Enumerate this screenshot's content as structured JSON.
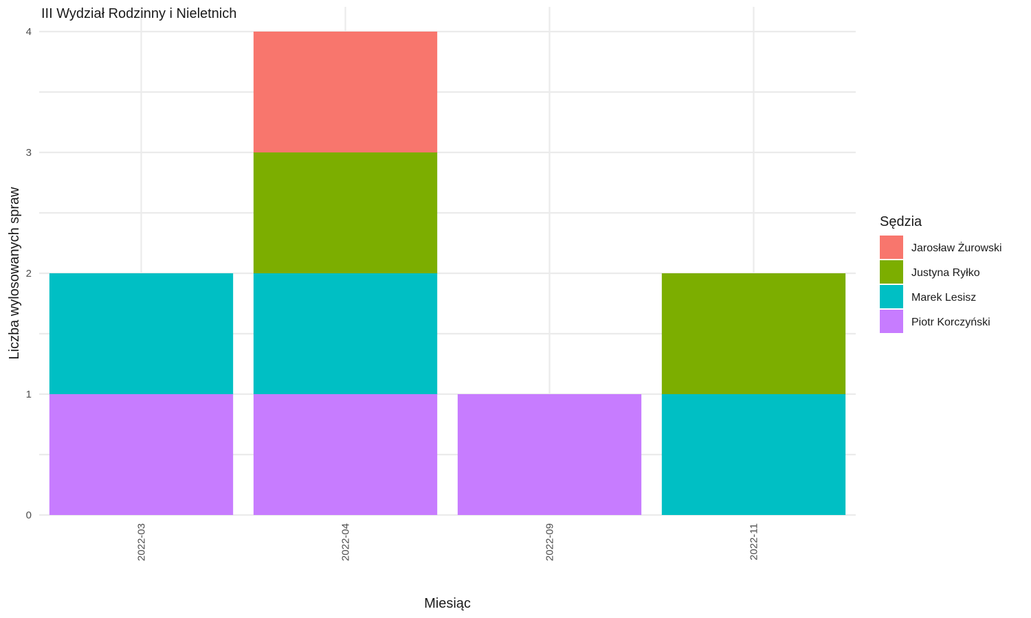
{
  "chart_data": {
    "type": "bar",
    "stacked": true,
    "title": "III Wydział Rodzinny i Nieletnich",
    "xlabel": "Miesiąc",
    "ylabel": "Liczba wylosowanych spraw",
    "categories": [
      "2022-03",
      "2022-04",
      "2022-09",
      "2022-11"
    ],
    "ylim": [
      0,
      4
    ],
    "yticks": [
      "0",
      "1",
      "2",
      "3",
      "4"
    ],
    "grid": true,
    "legend": {
      "title": "Sędzia",
      "position": "right"
    },
    "series": [
      {
        "name": "Jarosław Żurowski",
        "color": "#F8766D",
        "values": [
          0,
          1,
          0,
          0
        ]
      },
      {
        "name": "Justyna Ryłko",
        "color": "#7CAE00",
        "values": [
          0,
          1,
          0,
          1
        ]
      },
      {
        "name": "Marek Lesisz",
        "color": "#00BFC4",
        "values": [
          1,
          1,
          0,
          1
        ]
      },
      {
        "name": "Piotr Korczyński",
        "color": "#C77CFF",
        "values": [
          1,
          1,
          1,
          0
        ]
      }
    ]
  }
}
